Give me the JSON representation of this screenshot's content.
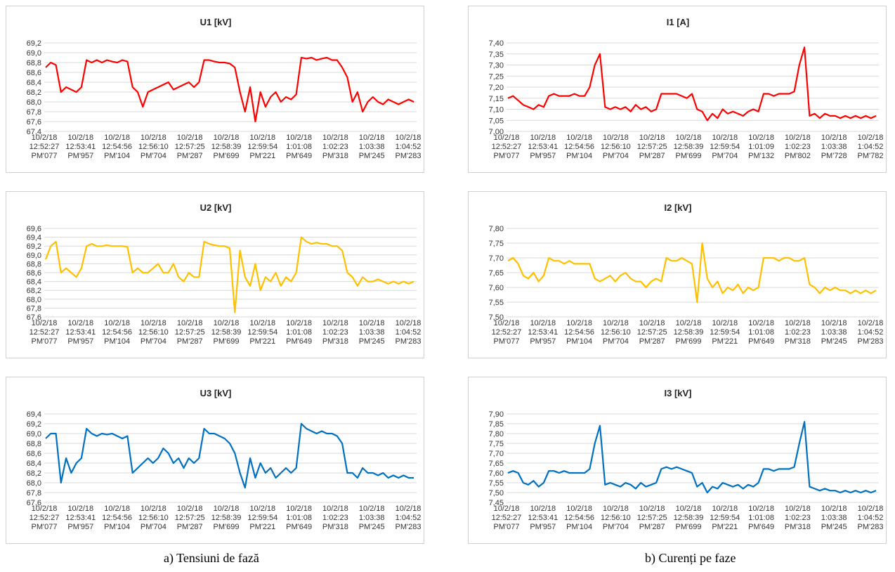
{
  "captions": {
    "left": "a) Tensiuni de fază",
    "right": "b) Curenți pe faze"
  },
  "chart_data": [
    {
      "id": "u1",
      "type": "line",
      "title": "U1  [kV]",
      "color": "#ff0000",
      "ylim": [
        67.4,
        69.2
      ],
      "ystep": 0.2,
      "decimals": 1,
      "x_ticks": [
        [
          "10/2/18",
          "12:52:27",
          "PM'077"
        ],
        [
          "10/2/18",
          "12:53:41",
          "PM'957"
        ],
        [
          "10/2/18",
          "12:54:56",
          "PM'104"
        ],
        [
          "10/2/18",
          "12:56:10",
          "PM'704"
        ],
        [
          "10/2/18",
          "12:57:25",
          "PM'287"
        ],
        [
          "10/2/18",
          "12:58:39",
          "PM'699"
        ],
        [
          "10/2/18",
          "12:59:54",
          "PM'221"
        ],
        [
          "10/2/18",
          "1:01:08",
          "PM'649"
        ],
        [
          "10/2/18",
          "1:02:23",
          "PM'318"
        ],
        [
          "10/2/18",
          "1:03:38",
          "PM'245"
        ],
        [
          "10/2/18",
          "1:04:52",
          "PM'283"
        ]
      ],
      "series": [
        {
          "values": [
            68.7,
            68.8,
            68.75,
            68.2,
            68.3,
            68.25,
            68.2,
            68.3,
            68.85,
            68.8,
            68.85,
            68.8,
            68.85,
            68.82,
            68.8,
            68.85,
            68.82,
            68.3,
            68.2,
            67.9,
            68.2,
            68.25,
            68.3,
            68.35,
            68.4,
            68.25,
            68.3,
            68.35,
            68.4,
            68.3,
            68.4,
            68.85,
            68.85,
            68.82,
            68.8,
            68.8,
            68.78,
            68.7,
            68.2,
            67.8,
            68.3,
            67.6,
            68.2,
            67.9,
            68.1,
            68.2,
            68.0,
            68.1,
            68.05,
            68.15,
            68.9,
            68.88,
            68.9,
            68.85,
            68.88,
            68.9,
            68.85,
            68.85,
            68.7,
            68.5,
            68.0,
            68.2,
            67.8,
            68.0,
            68.1,
            68.0,
            67.95,
            68.05,
            68.0,
            67.95,
            68.0,
            68.05,
            68.0
          ]
        }
      ]
    },
    {
      "id": "i1",
      "type": "line",
      "title": "I1  [A]",
      "color": "#ff0000",
      "ylim": [
        7.0,
        7.4
      ],
      "ystep": 0.05,
      "decimals": 2,
      "x_ticks": [
        [
          "10/2/18",
          "12:52:27",
          "PM'077"
        ],
        [
          "10/2/18",
          "12:53:41",
          "PM'957"
        ],
        [
          "10/2/18",
          "12:54:56",
          "PM'104"
        ],
        [
          "10/2/18",
          "12:56:10",
          "PM'704"
        ],
        [
          "10/2/18",
          "12:57:25",
          "PM'287"
        ],
        [
          "10/2/18",
          "12:58:39",
          "PM'699"
        ],
        [
          "10/2/18",
          "12:59:54",
          "PM'704"
        ],
        [
          "10/2/18",
          "1:01:09",
          "PM'132"
        ],
        [
          "10/2/18",
          "1:02:23",
          "PM'802"
        ],
        [
          "10/2/18",
          "1:03:38",
          "PM'728"
        ],
        [
          "10/2/18",
          "1:04:52",
          "PM'782"
        ]
      ],
      "series": [
        {
          "values": [
            7.15,
            7.16,
            7.14,
            7.12,
            7.11,
            7.1,
            7.12,
            7.11,
            7.16,
            7.17,
            7.16,
            7.16,
            7.16,
            7.17,
            7.16,
            7.16,
            7.2,
            7.3,
            7.35,
            7.11,
            7.1,
            7.11,
            7.1,
            7.11,
            7.09,
            7.12,
            7.1,
            7.11,
            7.09,
            7.1,
            7.17,
            7.17,
            7.17,
            7.17,
            7.16,
            7.15,
            7.17,
            7.1,
            7.09,
            7.05,
            7.08,
            7.06,
            7.1,
            7.08,
            7.09,
            7.08,
            7.07,
            7.09,
            7.1,
            7.09,
            7.17,
            7.17,
            7.16,
            7.17,
            7.17,
            7.17,
            7.18,
            7.3,
            7.38,
            7.07,
            7.08,
            7.06,
            7.08,
            7.07,
            7.07,
            7.06,
            7.07,
            7.06,
            7.07,
            7.06,
            7.07,
            7.06,
            7.07
          ]
        }
      ]
    },
    {
      "id": "u2",
      "type": "line",
      "title": "U2  [kV]",
      "color": "#ffc000",
      "ylim": [
        67.6,
        69.6
      ],
      "ystep": 0.2,
      "decimals": 1,
      "x_ticks": [
        [
          "10/2/18",
          "12:52:27",
          "PM'077"
        ],
        [
          "10/2/18",
          "12:53:41",
          "PM'957"
        ],
        [
          "10/2/18",
          "12:54:56",
          "PM'104"
        ],
        [
          "10/2/18",
          "12:56:10",
          "PM'704"
        ],
        [
          "10/2/18",
          "12:57:25",
          "PM'287"
        ],
        [
          "10/2/18",
          "12:58:39",
          "PM'699"
        ],
        [
          "10/2/18",
          "12:59:54",
          "PM'221"
        ],
        [
          "10/2/18",
          "1:01:08",
          "PM'649"
        ],
        [
          "10/2/18",
          "1:02:23",
          "PM'318"
        ],
        [
          "10/2/18",
          "1:03:38",
          "PM'245"
        ],
        [
          "10/2/18",
          "1:04:52",
          "PM'283"
        ]
      ],
      "series": [
        {
          "values": [
            68.9,
            69.2,
            69.3,
            68.6,
            68.7,
            68.6,
            68.5,
            68.7,
            69.2,
            69.25,
            69.2,
            69.2,
            69.22,
            69.2,
            69.2,
            69.2,
            69.18,
            68.6,
            68.7,
            68.6,
            68.6,
            68.7,
            68.8,
            68.6,
            68.6,
            68.8,
            68.5,
            68.4,
            68.6,
            68.5,
            68.5,
            69.3,
            69.25,
            69.22,
            69.2,
            69.2,
            69.15,
            67.7,
            69.1,
            68.5,
            68.3,
            68.8,
            68.2,
            68.5,
            68.4,
            68.6,
            68.3,
            68.5,
            68.4,
            68.6,
            69.4,
            69.3,
            69.25,
            69.28,
            69.25,
            69.25,
            69.2,
            69.2,
            69.1,
            68.6,
            68.5,
            68.3,
            68.5,
            68.4,
            68.4,
            68.45,
            68.4,
            68.35,
            68.4,
            68.35,
            68.4,
            68.35,
            68.4
          ]
        }
      ]
    },
    {
      "id": "i2",
      "type": "line",
      "title": "I2  [kV]",
      "color": "#ffc000",
      "ylim": [
        7.5,
        7.8
      ],
      "ystep": 0.05,
      "decimals": 2,
      "x_ticks": [
        [
          "10/2/18",
          "12:52:27",
          "PM'077"
        ],
        [
          "10/2/18",
          "12:53:41",
          "PM'957"
        ],
        [
          "10/2/18",
          "12:54:56",
          "PM'104"
        ],
        [
          "10/2/18",
          "12:56:10",
          "PM'704"
        ],
        [
          "10/2/18",
          "12:57:25",
          "PM'287"
        ],
        [
          "10/2/18",
          "12:58:39",
          "PM'699"
        ],
        [
          "10/2/18",
          "12:59:54",
          "PM'221"
        ],
        [
          "10/2/18",
          "1:01:08",
          "PM'649"
        ],
        [
          "10/2/18",
          "1:02:23",
          "PM'318"
        ],
        [
          "10/2/18",
          "1:03:38",
          "PM'245"
        ],
        [
          "10/2/18",
          "1:04:52",
          "PM'283"
        ]
      ],
      "series": [
        {
          "values": [
            7.69,
            7.7,
            7.68,
            7.64,
            7.63,
            7.65,
            7.62,
            7.64,
            7.7,
            7.69,
            7.69,
            7.68,
            7.69,
            7.68,
            7.68,
            7.68,
            7.68,
            7.63,
            7.62,
            7.63,
            7.64,
            7.62,
            7.64,
            7.65,
            7.63,
            7.62,
            7.62,
            7.6,
            7.62,
            7.63,
            7.62,
            7.7,
            7.69,
            7.69,
            7.7,
            7.69,
            7.68,
            7.55,
            7.75,
            7.63,
            7.6,
            7.62,
            7.58,
            7.6,
            7.59,
            7.61,
            7.58,
            7.6,
            7.59,
            7.6,
            7.7,
            7.7,
            7.7,
            7.69,
            7.7,
            7.7,
            7.69,
            7.69,
            7.7,
            7.61,
            7.6,
            7.58,
            7.6,
            7.59,
            7.6,
            7.59,
            7.59,
            7.58,
            7.59,
            7.58,
            7.59,
            7.58,
            7.59
          ]
        }
      ]
    },
    {
      "id": "u3",
      "type": "line",
      "title": "U3  [kV]",
      "color": "#0070c0",
      "ylim": [
        67.6,
        69.4
      ],
      "ystep": 0.2,
      "decimals": 1,
      "x_ticks": [
        [
          "10/2/18",
          "12:52:27",
          "PM'077"
        ],
        [
          "10/2/18",
          "12:53:41",
          "PM'957"
        ],
        [
          "10/2/18",
          "12:54:56",
          "PM'104"
        ],
        [
          "10/2/18",
          "12:56:10",
          "PM'704"
        ],
        [
          "10/2/18",
          "12:57:25",
          "PM'287"
        ],
        [
          "10/2/18",
          "12:58:39",
          "PM'699"
        ],
        [
          "10/2/18",
          "12:59:54",
          "PM'221"
        ],
        [
          "10/2/18",
          "1:01:08",
          "PM'649"
        ],
        [
          "10/2/18",
          "1:02:23",
          "PM'318"
        ],
        [
          "10/2/18",
          "1:03:38",
          "PM'245"
        ],
        [
          "10/2/18",
          "1:04:52",
          "PM'283"
        ]
      ],
      "series": [
        {
          "values": [
            68.9,
            69.0,
            69.0,
            68.0,
            68.5,
            68.2,
            68.4,
            68.5,
            69.1,
            69.0,
            68.95,
            69.0,
            68.98,
            69.0,
            68.95,
            68.9,
            68.95,
            68.2,
            68.3,
            68.4,
            68.5,
            68.4,
            68.5,
            68.7,
            68.6,
            68.4,
            68.5,
            68.3,
            68.5,
            68.4,
            68.5,
            69.1,
            69.0,
            69.0,
            68.95,
            68.9,
            68.8,
            68.6,
            68.2,
            67.9,
            68.5,
            68.1,
            68.4,
            68.2,
            68.3,
            68.1,
            68.2,
            68.3,
            68.2,
            68.3,
            69.2,
            69.1,
            69.05,
            69.0,
            69.05,
            69.0,
            69.0,
            68.95,
            68.8,
            68.2,
            68.2,
            68.1,
            68.3,
            68.2,
            68.2,
            68.15,
            68.2,
            68.1,
            68.15,
            68.1,
            68.15,
            68.1,
            68.1
          ]
        }
      ]
    },
    {
      "id": "i3",
      "type": "line",
      "title": "I3  [kV]",
      "color": "#0070c0",
      "ylim": [
        7.45,
        7.9
      ],
      "ystep": 0.05,
      "decimals": 2,
      "x_ticks": [
        [
          "10/2/18",
          "12:52:27",
          "PM'077"
        ],
        [
          "10/2/18",
          "12:53:41",
          "PM'957"
        ],
        [
          "10/2/18",
          "12:54:56",
          "PM'104"
        ],
        [
          "10/2/18",
          "12:56:10",
          "PM'704"
        ],
        [
          "10/2/18",
          "12:57:25",
          "PM'287"
        ],
        [
          "10/2/18",
          "12:58:39",
          "PM'699"
        ],
        [
          "10/2/18",
          "12:59:54",
          "PM'221"
        ],
        [
          "10/2/18",
          "1:01:08",
          "PM'649"
        ],
        [
          "10/2/18",
          "1:02:23",
          "PM'318"
        ],
        [
          "10/2/18",
          "1:03:38",
          "PM'245"
        ],
        [
          "10/2/18",
          "1:04:52",
          "PM'283"
        ]
      ],
      "series": [
        {
          "values": [
            7.6,
            7.61,
            7.6,
            7.55,
            7.54,
            7.56,
            7.53,
            7.55,
            7.61,
            7.61,
            7.6,
            7.61,
            7.6,
            7.6,
            7.6,
            7.6,
            7.62,
            7.75,
            7.84,
            7.54,
            7.55,
            7.54,
            7.53,
            7.55,
            7.54,
            7.52,
            7.55,
            7.53,
            7.54,
            7.55,
            7.62,
            7.63,
            7.62,
            7.63,
            7.62,
            7.61,
            7.6,
            7.53,
            7.55,
            7.5,
            7.53,
            7.52,
            7.55,
            7.54,
            7.53,
            7.54,
            7.52,
            7.54,
            7.53,
            7.55,
            7.62,
            7.62,
            7.61,
            7.62,
            7.62,
            7.62,
            7.63,
            7.75,
            7.86,
            7.53,
            7.52,
            7.51,
            7.52,
            7.51,
            7.51,
            7.5,
            7.51,
            7.5,
            7.51,
            7.5,
            7.51,
            7.5,
            7.51
          ]
        }
      ]
    }
  ]
}
